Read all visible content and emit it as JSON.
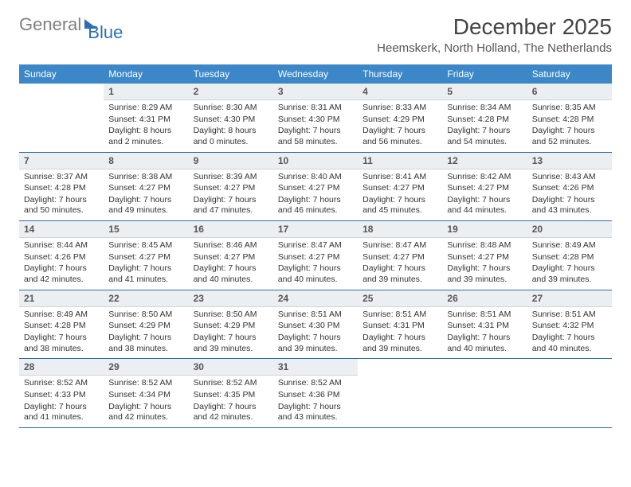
{
  "logo": {
    "part1": "General",
    "part2": "Blue"
  },
  "title": "December 2025",
  "location": "Heemskerk, North Holland, The Netherlands",
  "colors": {
    "header_bg": "#3b87c8",
    "header_text": "#ffffff",
    "daynum_bg": "#eceff1",
    "border": "#2d6ea8",
    "logo_gray": "#808080",
    "logo_blue": "#2b6fb3"
  },
  "fonts": {
    "title_size": 28,
    "location_size": 15,
    "header_cell_size": 12,
    "daynum_size": 12,
    "body_size": 10.5
  },
  "weekday_headers": [
    "Sunday",
    "Monday",
    "Tuesday",
    "Wednesday",
    "Thursday",
    "Friday",
    "Saturday"
  ],
  "start_offset": 1,
  "days": [
    {
      "n": "1",
      "sunrise": "Sunrise: 8:29 AM",
      "sunset": "Sunset: 4:31 PM",
      "daylight": "Daylight: 8 hours and 2 minutes."
    },
    {
      "n": "2",
      "sunrise": "Sunrise: 8:30 AM",
      "sunset": "Sunset: 4:30 PM",
      "daylight": "Daylight: 8 hours and 0 minutes."
    },
    {
      "n": "3",
      "sunrise": "Sunrise: 8:31 AM",
      "sunset": "Sunset: 4:30 PM",
      "daylight": "Daylight: 7 hours and 58 minutes."
    },
    {
      "n": "4",
      "sunrise": "Sunrise: 8:33 AM",
      "sunset": "Sunset: 4:29 PM",
      "daylight": "Daylight: 7 hours and 56 minutes."
    },
    {
      "n": "5",
      "sunrise": "Sunrise: 8:34 AM",
      "sunset": "Sunset: 4:28 PM",
      "daylight": "Daylight: 7 hours and 54 minutes."
    },
    {
      "n": "6",
      "sunrise": "Sunrise: 8:35 AM",
      "sunset": "Sunset: 4:28 PM",
      "daylight": "Daylight: 7 hours and 52 minutes."
    },
    {
      "n": "7",
      "sunrise": "Sunrise: 8:37 AM",
      "sunset": "Sunset: 4:28 PM",
      "daylight": "Daylight: 7 hours and 50 minutes."
    },
    {
      "n": "8",
      "sunrise": "Sunrise: 8:38 AM",
      "sunset": "Sunset: 4:27 PM",
      "daylight": "Daylight: 7 hours and 49 minutes."
    },
    {
      "n": "9",
      "sunrise": "Sunrise: 8:39 AM",
      "sunset": "Sunset: 4:27 PM",
      "daylight": "Daylight: 7 hours and 47 minutes."
    },
    {
      "n": "10",
      "sunrise": "Sunrise: 8:40 AM",
      "sunset": "Sunset: 4:27 PM",
      "daylight": "Daylight: 7 hours and 46 minutes."
    },
    {
      "n": "11",
      "sunrise": "Sunrise: 8:41 AM",
      "sunset": "Sunset: 4:27 PM",
      "daylight": "Daylight: 7 hours and 45 minutes."
    },
    {
      "n": "12",
      "sunrise": "Sunrise: 8:42 AM",
      "sunset": "Sunset: 4:27 PM",
      "daylight": "Daylight: 7 hours and 44 minutes."
    },
    {
      "n": "13",
      "sunrise": "Sunrise: 8:43 AM",
      "sunset": "Sunset: 4:26 PM",
      "daylight": "Daylight: 7 hours and 43 minutes."
    },
    {
      "n": "14",
      "sunrise": "Sunrise: 8:44 AM",
      "sunset": "Sunset: 4:26 PM",
      "daylight": "Daylight: 7 hours and 42 minutes."
    },
    {
      "n": "15",
      "sunrise": "Sunrise: 8:45 AM",
      "sunset": "Sunset: 4:27 PM",
      "daylight": "Daylight: 7 hours and 41 minutes."
    },
    {
      "n": "16",
      "sunrise": "Sunrise: 8:46 AM",
      "sunset": "Sunset: 4:27 PM",
      "daylight": "Daylight: 7 hours and 40 minutes."
    },
    {
      "n": "17",
      "sunrise": "Sunrise: 8:47 AM",
      "sunset": "Sunset: 4:27 PM",
      "daylight": "Daylight: 7 hours and 40 minutes."
    },
    {
      "n": "18",
      "sunrise": "Sunrise: 8:47 AM",
      "sunset": "Sunset: 4:27 PM",
      "daylight": "Daylight: 7 hours and 39 minutes."
    },
    {
      "n": "19",
      "sunrise": "Sunrise: 8:48 AM",
      "sunset": "Sunset: 4:27 PM",
      "daylight": "Daylight: 7 hours and 39 minutes."
    },
    {
      "n": "20",
      "sunrise": "Sunrise: 8:49 AM",
      "sunset": "Sunset: 4:28 PM",
      "daylight": "Daylight: 7 hours and 39 minutes."
    },
    {
      "n": "21",
      "sunrise": "Sunrise: 8:49 AM",
      "sunset": "Sunset: 4:28 PM",
      "daylight": "Daylight: 7 hours and 38 minutes."
    },
    {
      "n": "22",
      "sunrise": "Sunrise: 8:50 AM",
      "sunset": "Sunset: 4:29 PM",
      "daylight": "Daylight: 7 hours and 38 minutes."
    },
    {
      "n": "23",
      "sunrise": "Sunrise: 8:50 AM",
      "sunset": "Sunset: 4:29 PM",
      "daylight": "Daylight: 7 hours and 39 minutes."
    },
    {
      "n": "24",
      "sunrise": "Sunrise: 8:51 AM",
      "sunset": "Sunset: 4:30 PM",
      "daylight": "Daylight: 7 hours and 39 minutes."
    },
    {
      "n": "25",
      "sunrise": "Sunrise: 8:51 AM",
      "sunset": "Sunset: 4:31 PM",
      "daylight": "Daylight: 7 hours and 39 minutes."
    },
    {
      "n": "26",
      "sunrise": "Sunrise: 8:51 AM",
      "sunset": "Sunset: 4:31 PM",
      "daylight": "Daylight: 7 hours and 40 minutes."
    },
    {
      "n": "27",
      "sunrise": "Sunrise: 8:51 AM",
      "sunset": "Sunset: 4:32 PM",
      "daylight": "Daylight: 7 hours and 40 minutes."
    },
    {
      "n": "28",
      "sunrise": "Sunrise: 8:52 AM",
      "sunset": "Sunset: 4:33 PM",
      "daylight": "Daylight: 7 hours and 41 minutes."
    },
    {
      "n": "29",
      "sunrise": "Sunrise: 8:52 AM",
      "sunset": "Sunset: 4:34 PM",
      "daylight": "Daylight: 7 hours and 42 minutes."
    },
    {
      "n": "30",
      "sunrise": "Sunrise: 8:52 AM",
      "sunset": "Sunset: 4:35 PM",
      "daylight": "Daylight: 7 hours and 42 minutes."
    },
    {
      "n": "31",
      "sunrise": "Sunrise: 8:52 AM",
      "sunset": "Sunset: 4:36 PM",
      "daylight": "Daylight: 7 hours and 43 minutes."
    }
  ]
}
